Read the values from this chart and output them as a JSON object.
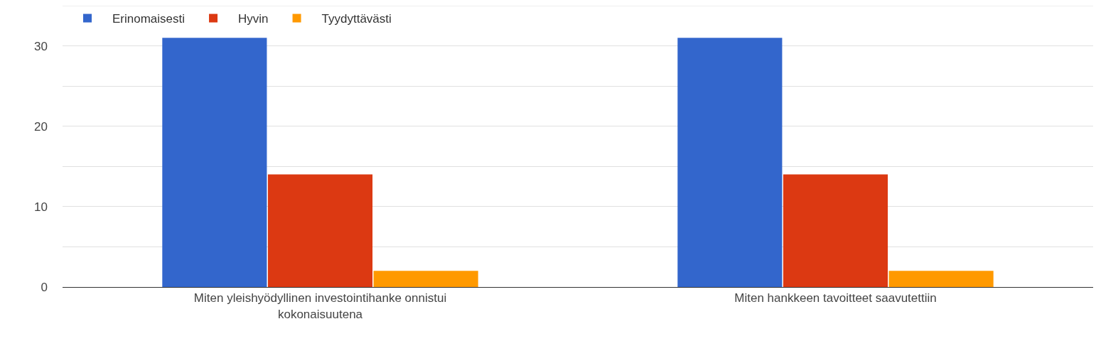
{
  "chart_data": {
    "type": "bar",
    "categories": [
      "Miten yleishyödyllinen investointihanke onnistui kokonaisuutena",
      "Miten hankkeen tavoitteet saavutettiin"
    ],
    "series": [
      {
        "name": "Erinomaisesti",
        "color": "#3366cc",
        "values": [
          31,
          31
        ]
      },
      {
        "name": "Hyvin",
        "color": "#dc3912",
        "values": [
          14,
          14
        ]
      },
      {
        "name": "Tyydyttävästi",
        "color": "#ff9900",
        "values": [
          2,
          2
        ]
      }
    ],
    "ylim": [
      0,
      35
    ],
    "yticks": [
      0,
      {
        "value": 5,
        "label": null
      },
      10,
      {
        "value": 15,
        "label": null
      },
      20,
      {
        "value": 25,
        "label": null
      },
      30
    ],
    "grid": "y",
    "legend": "top left"
  }
}
